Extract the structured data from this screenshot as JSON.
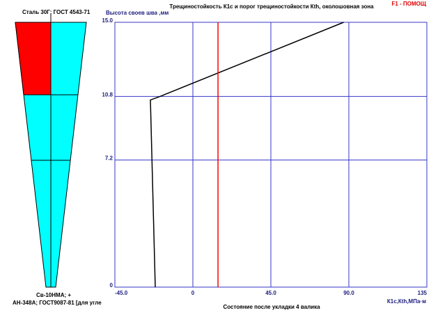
{
  "help": "F1 - ПОМОЩ",
  "weld": {
    "steel": "Сталь 30Г; ГОСТ 4543-71",
    "wire": "Св-10НМА; +",
    "flux": "АН-348А; ГОСТ9087-81 [для угле"
  },
  "chart_data": {
    "type": "line",
    "title": "Трещиностойкость К1с  и порог трещиностойкости Кth, околошовная зона",
    "y_label": "Высота своев шва ,мм",
    "x_label": "К1с,Кth,МПа·м",
    "caption": "Состояние после укладки 4 валика",
    "xlim": [
      -45,
      135
    ],
    "xticks": [
      {
        "value": -45,
        "label": "-45.0"
      },
      0,
      {
        "value": 45,
        "label": "45.0"
      },
      {
        "value": 90,
        "label": "90.0"
      },
      135
    ],
    "ylim": [
      0,
      15
    ],
    "yticks": [
      0,
      7.2,
      10.8,
      {
        "value": 15,
        "label": "15.0"
      }
    ],
    "grid": true,
    "grid_color": "#3434c8",
    "series": [
      {
        "color": "#000000",
        "x": [
          -21.7,
          -24.5,
          -19,
          87
        ],
        "values": [
          0,
          10.6,
          10.8,
          15
        ]
      },
      {
        "color": "#ff0000",
        "x": [
          14.5,
          14.5
        ],
        "values": [
          0,
          15
        ]
      }
    ]
  }
}
